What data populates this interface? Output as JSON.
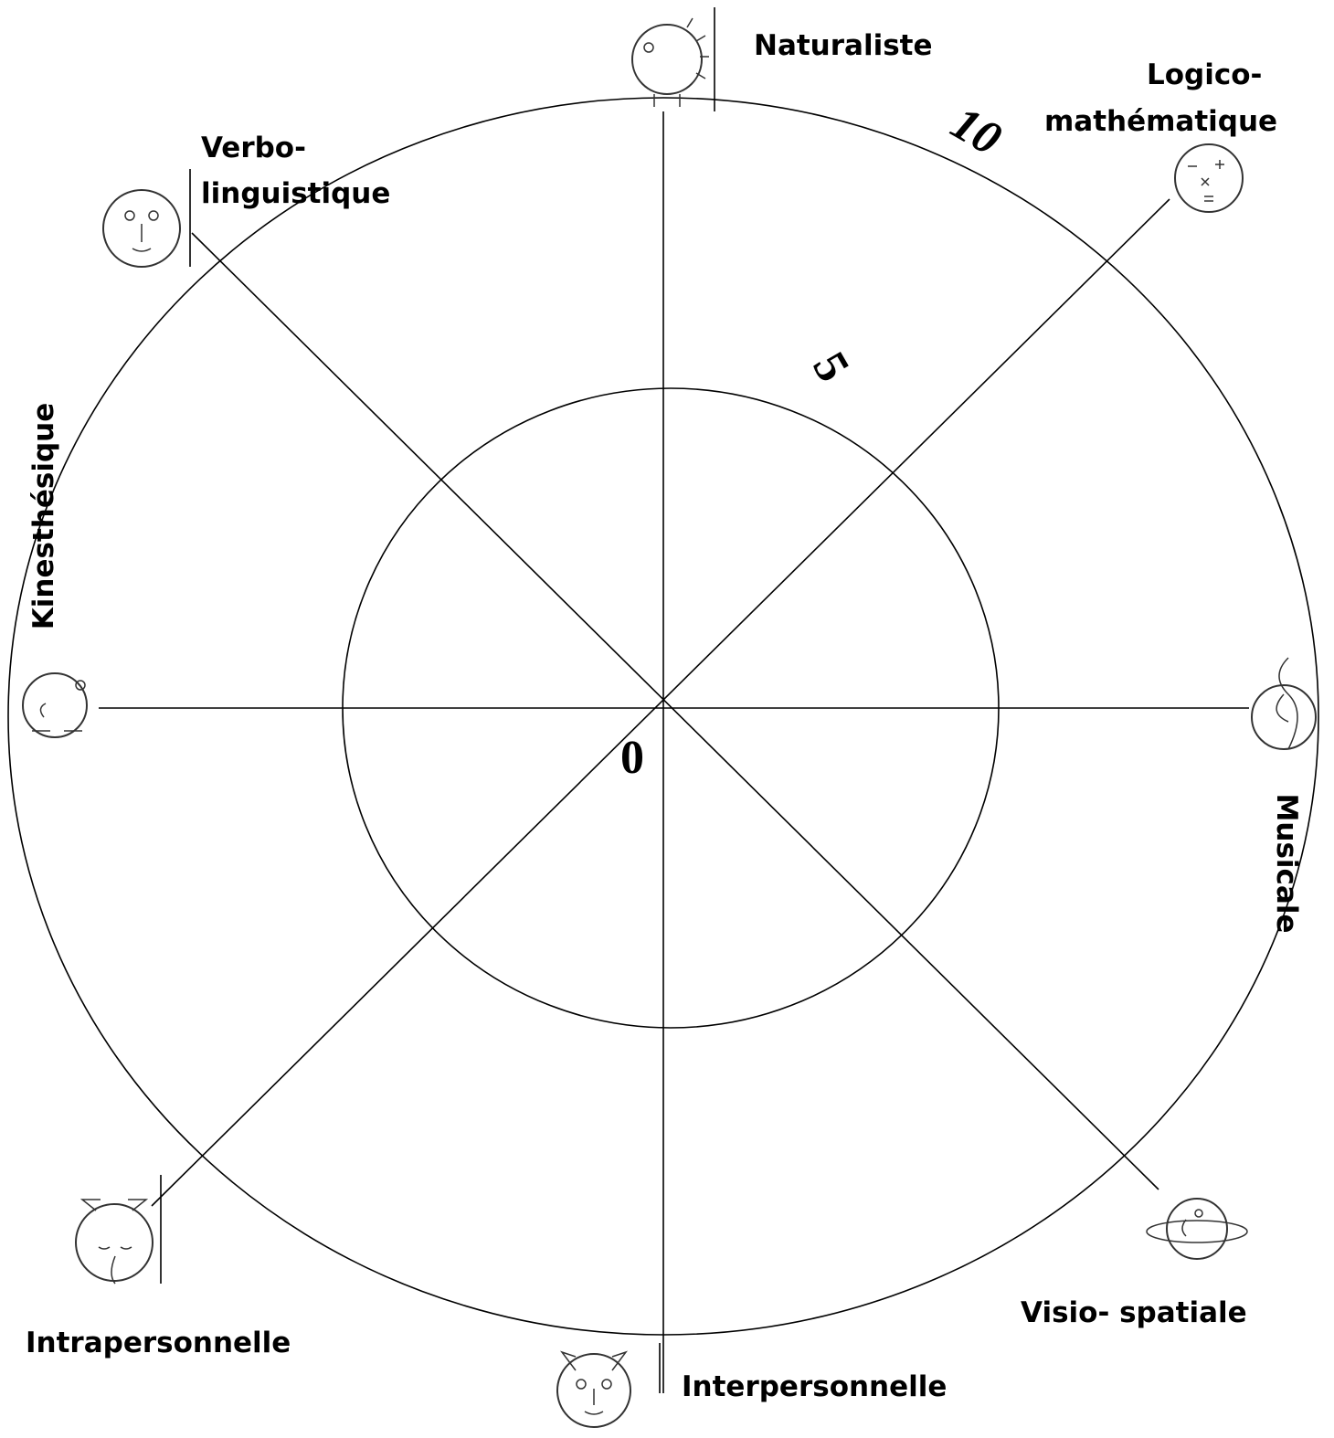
{
  "axes": [
    {
      "lines": [
        "Naturaliste"
      ]
    },
    {
      "lines": [
        "Logico-",
        "mathématique"
      ]
    },
    {
      "lines": [
        "Musicale"
      ]
    },
    {
      "lines": [
        "Visio- spatiale"
      ]
    },
    {
      "lines": [
        "Interpersonnelle"
      ]
    },
    {
      "lines": [
        "Intrapersonnelle"
      ]
    },
    {
      "lines": [
        "Kinesthésique"
      ]
    },
    {
      "lines": [
        "Verbo-",
        "linguistique"
      ]
    }
  ],
  "scale": [
    "0",
    "5",
    "10"
  ]
}
